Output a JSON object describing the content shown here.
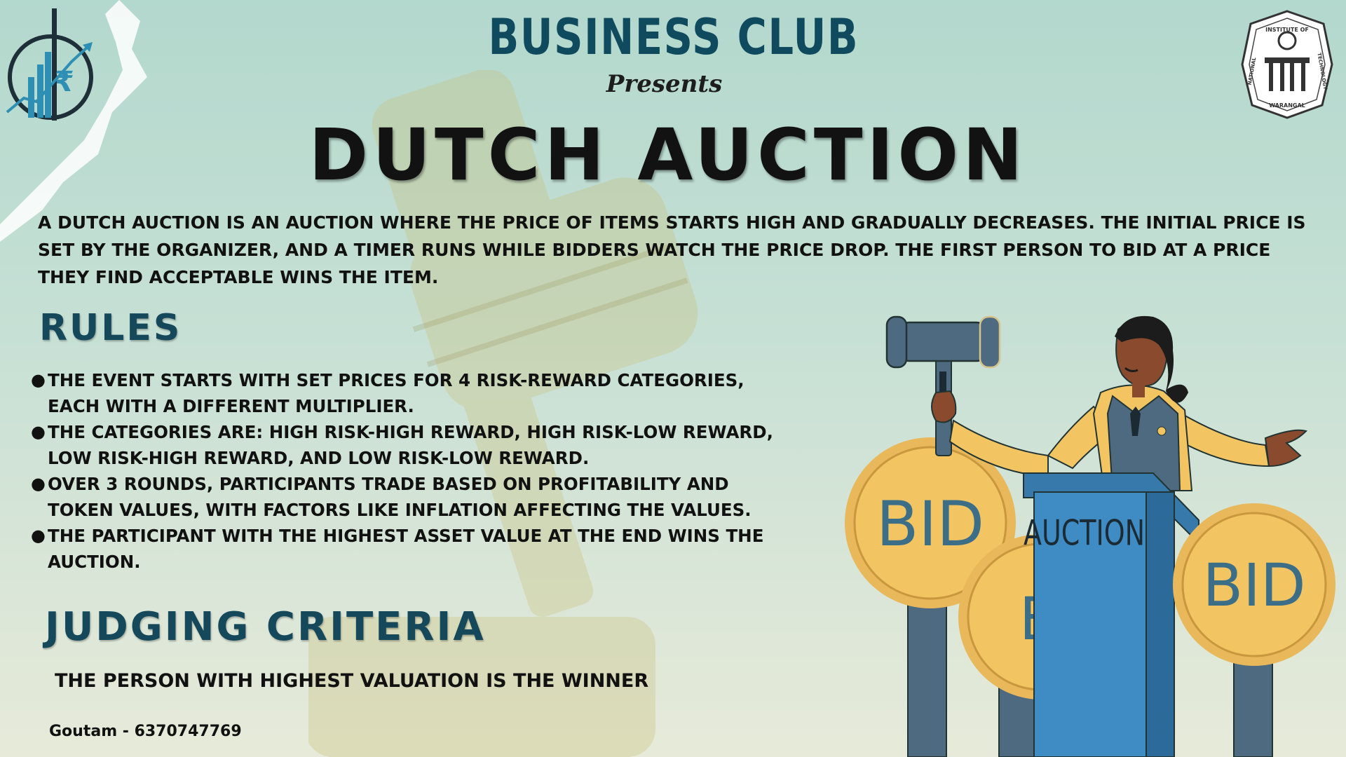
{
  "header": {
    "club_title": "BUSINESS CLUB",
    "presents": "Presents",
    "event_title": "DUTCH AUCTION"
  },
  "logos": {
    "left": {
      "icon": "rupee-growth-chart-logo"
    },
    "right": {
      "icon": "nit-warangal-seal",
      "text_top": "INSTITUTE OF",
      "text_left": "NATIONAL",
      "text_right": "TECHNOLOGY",
      "text_bottom": "WARANGAL"
    }
  },
  "description": "A DUTCH AUCTION IS AN AUCTION WHERE THE PRICE OF ITEMS STARTS HIGH AND GRADUALLY DECREASES. THE INITIAL PRICE IS SET BY THE ORGANIZER, AND A TIMER RUNS WHILE BIDDERS WATCH THE PRICE DROP. THE FIRST PERSON TO BID AT A PRICE THEY FIND ACCEPTABLE WINS THE ITEM.",
  "rules": {
    "heading": "RULES",
    "items": [
      "THE EVENT STARTS WITH SET PRICES FOR 4 RISK-REWARD CATEGORIES, EACH WITH A DIFFERENT MULTIPLIER.",
      "THE CATEGORIES ARE: HIGH RISK-HIGH REWARD, HIGH RISK-LOW REWARD, LOW RISK-HIGH REWARD, AND LOW RISK-LOW REWARD.",
      "OVER 3 ROUNDS, PARTICIPANTS TRADE BASED ON PROFITABILITY AND TOKEN VALUES, WITH FACTORS LIKE INFLATION AFFECTING THE VALUES.",
      "THE PARTICIPANT WITH THE HIGHEST ASSET VALUE AT THE END WINS THE AUCTION."
    ]
  },
  "judging": {
    "heading": "JUDGING CRITERIA",
    "text": "THE PERSON WITH HIGHEST VALUATION IS THE WINNER"
  },
  "contact": "Goutam - 6370747769",
  "illustration": {
    "sign_left": "BID",
    "sign_middle": "BI",
    "sign_right": "BID",
    "podium_label": "AUCTION"
  },
  "colors": {
    "heading": "#14485a",
    "sign_fill": "#f2c462",
    "podium": "#3f8cc4",
    "background_top": "#b3d8cd",
    "background_bottom": "#e7ead9"
  }
}
